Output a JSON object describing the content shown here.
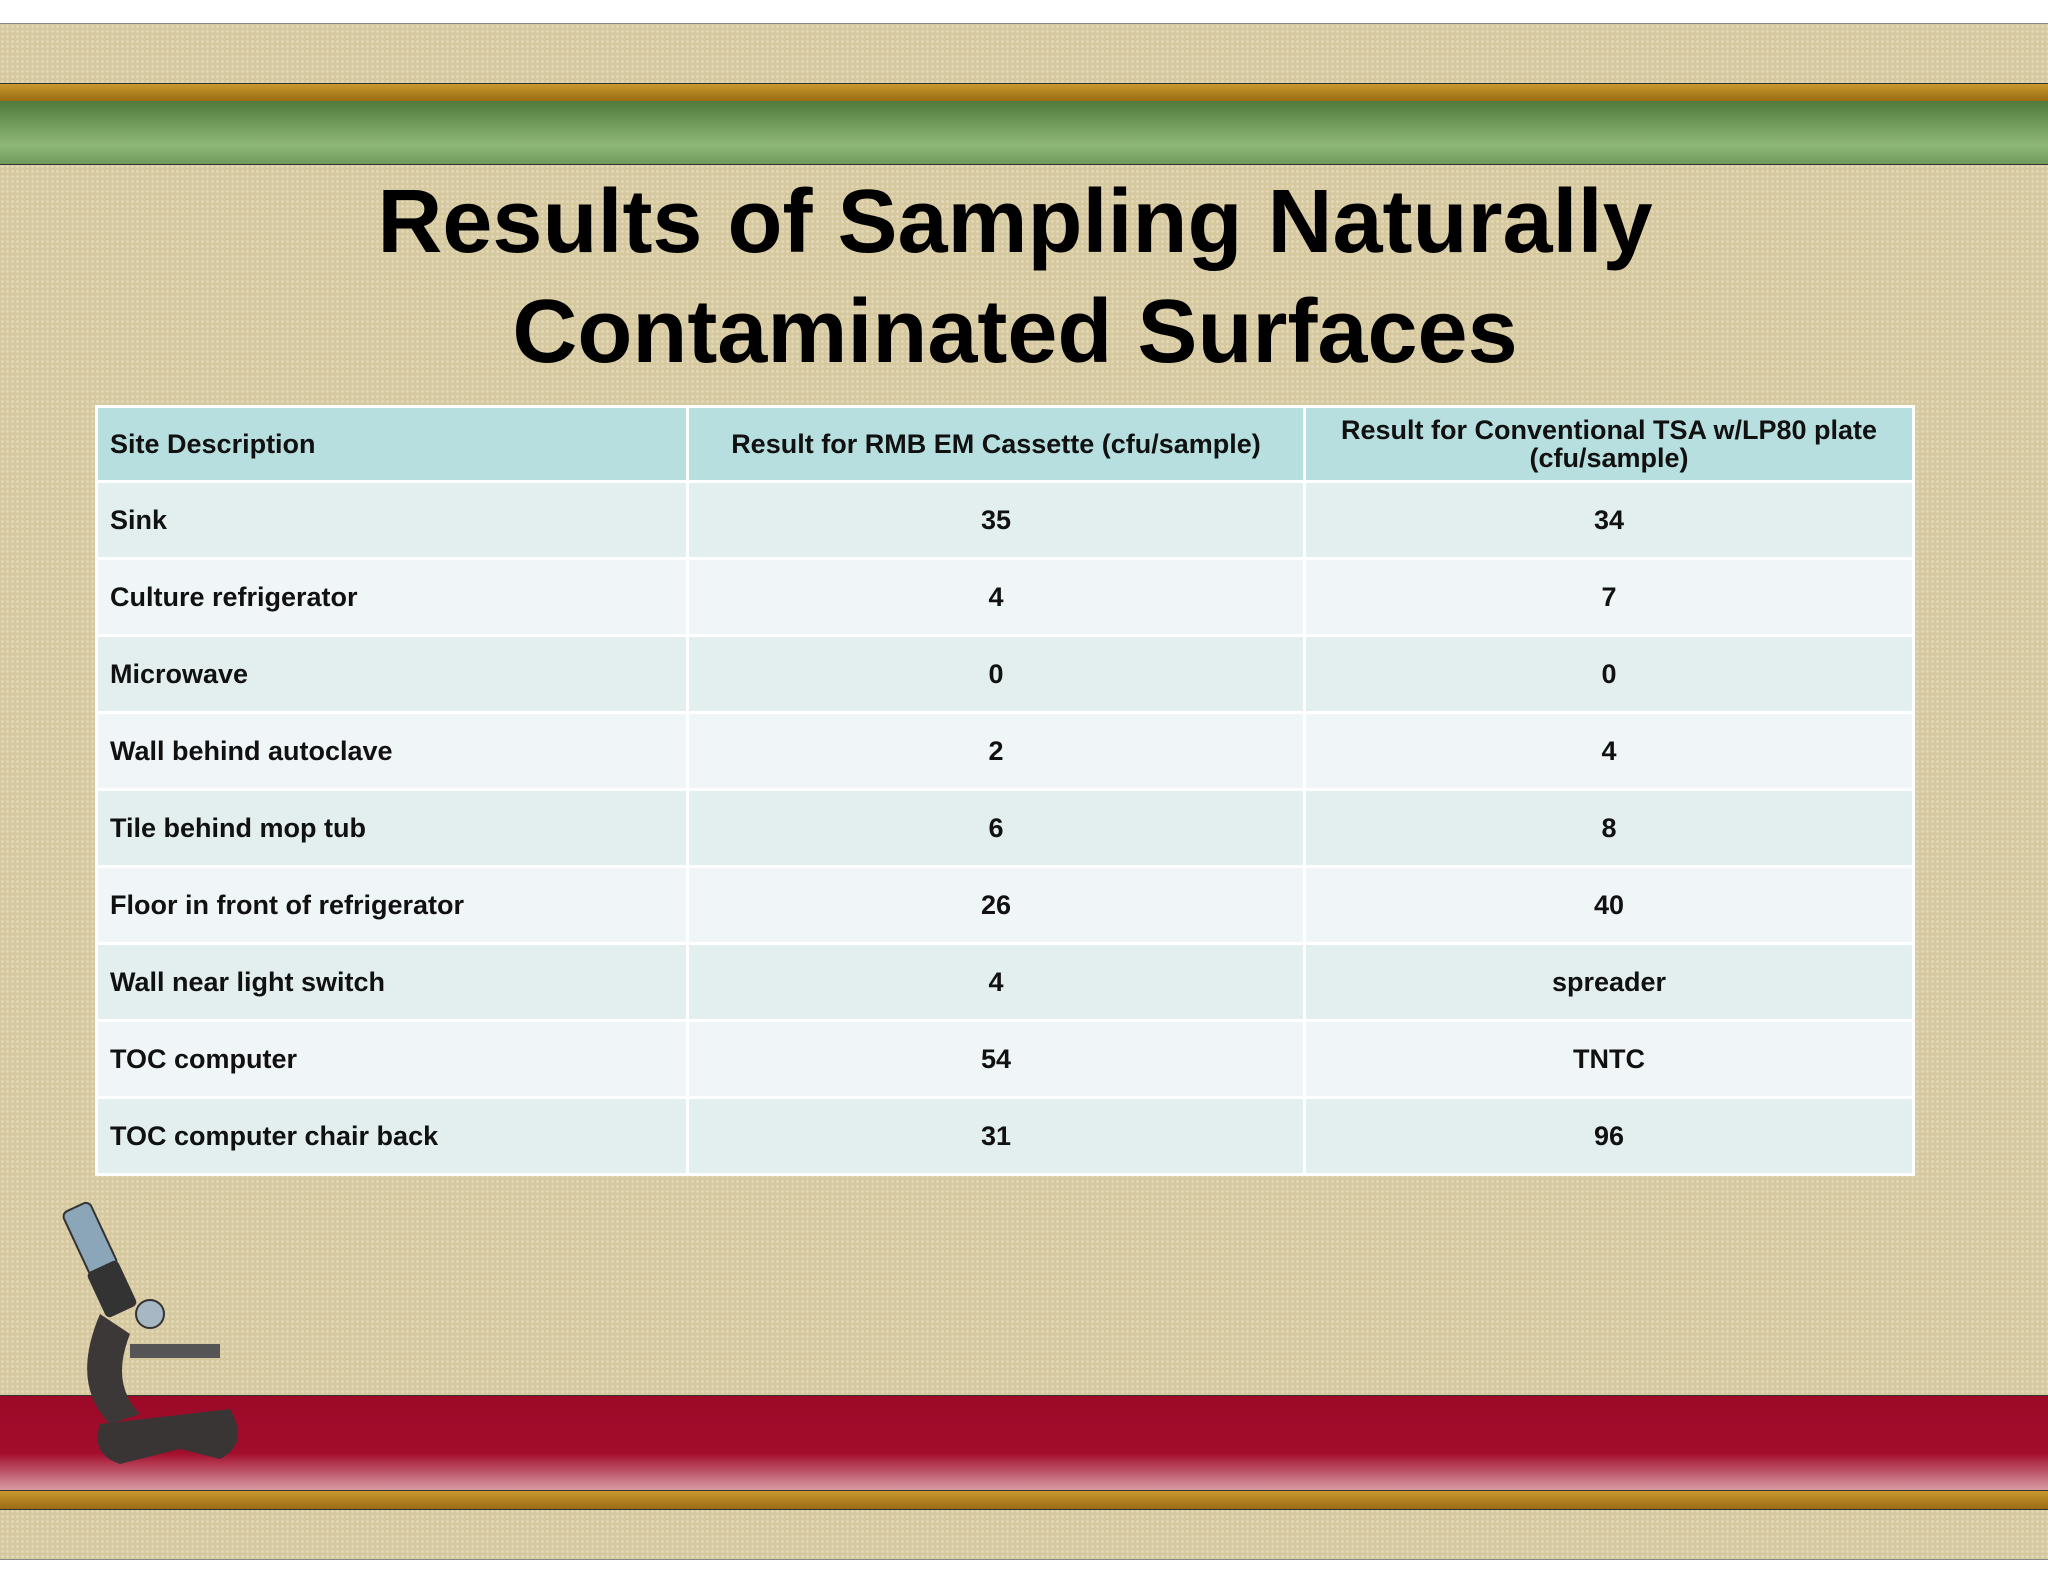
{
  "title": [
    "Results of Sampling Naturally",
    "Contaminated Surfaces"
  ],
  "table": {
    "header": [
      "Site Description",
      "Result for RMB EM Cassette (cfu/sample)",
      "Result for Conventional TSA w/LP80 plate (cfu/sample)"
    ],
    "rows": [
      [
        "Sink",
        35,
        34
      ],
      [
        "Culture refrigerator",
        4,
        7
      ],
      [
        "Microwave",
        0,
        0
      ],
      [
        "Wall behind autoclave",
        2,
        4
      ],
      [
        "Tile behind mop tub",
        6,
        8
      ],
      [
        "Floor in front of refrigerator",
        26,
        40
      ],
      [
        "Wall near light switch",
        4,
        "spreader"
      ],
      [
        "TOC computer",
        54,
        "TNTC"
      ],
      [
        "TOC computer chair back",
        31,
        96
      ]
    ]
  }
}
